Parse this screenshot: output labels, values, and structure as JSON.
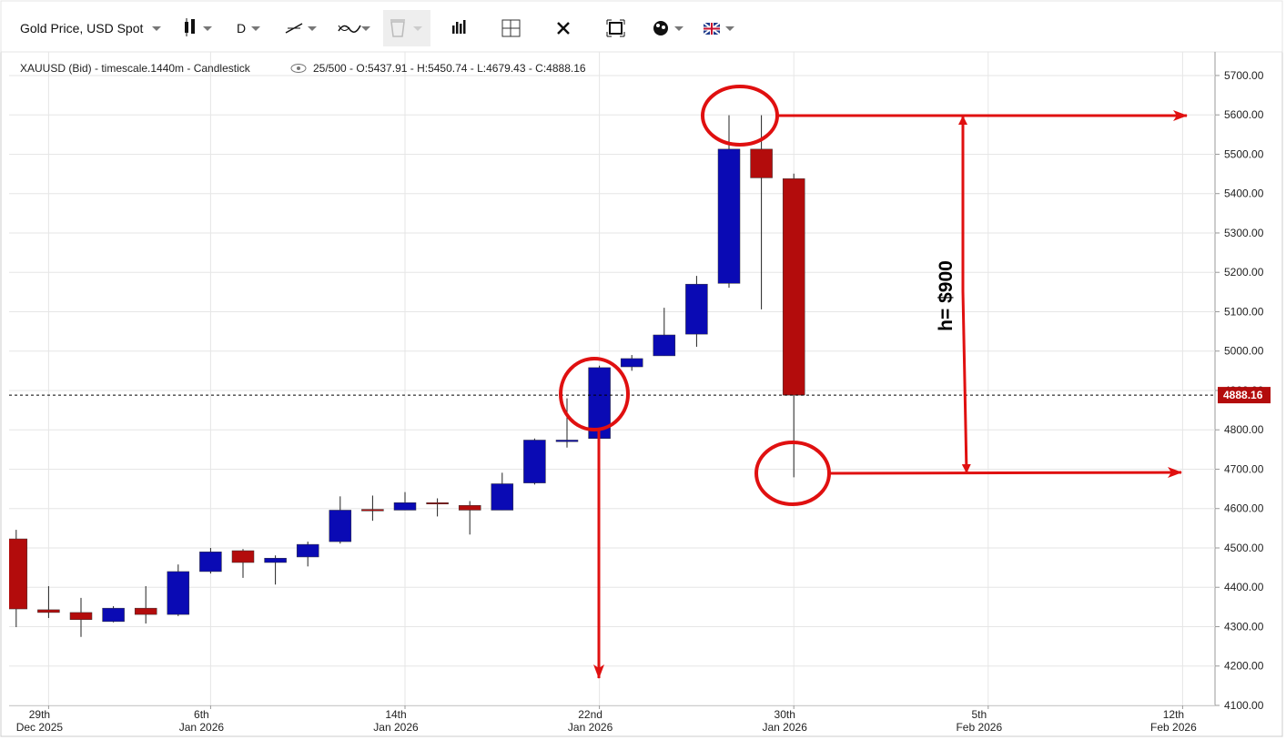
{
  "toolbar": {
    "symbol": "Gold Price, USD Spot",
    "interval": "D"
  },
  "chart_data": {
    "type": "candlestick",
    "header": "XAUUSD (Bid) - timescale.1440m - Candlestick",
    "header_stats": "25/500 - O:5437.91 - H:5450.74 - L:4679.43 - C:4888.16",
    "categories": [
      null,
      "29th Dec 2025",
      null,
      null,
      null,
      null,
      "6th Jan 2026",
      null,
      null,
      null,
      null,
      null,
      "14th Jan 2026",
      null,
      null,
      null,
      null,
      null,
      "22nd Jan 2026",
      null,
      null,
      null,
      null,
      null,
      "30th Jan 2026",
      null,
      null,
      null,
      null,
      null,
      "5th Feb 2026",
      null,
      null,
      null,
      null,
      null,
      "12th Feb 2026"
    ],
    "open": [
      4523,
      4343,
      4336,
      4313,
      4347,
      4331,
      4440,
      4493,
      4463,
      4477,
      4516,
      4598,
      4596,
      4615,
      4608,
      4596,
      4665,
      4770,
      4778,
      4960,
      4988,
      5043,
      5172,
      5513,
      5437.91,
      null,
      null,
      null,
      null,
      null,
      null,
      null,
      null,
      null,
      null,
      null,
      null
    ],
    "high": [
      4546,
      4403,
      4373,
      4352,
      4403,
      4458,
      4500,
      4497,
      4481,
      4516,
      4631,
      4633,
      4642,
      4626,
      4619,
      4691,
      4778,
      4880,
      4963,
      4990,
      5110,
      5191,
      5599,
      5599,
      5450.74,
      null,
      null,
      null,
      null,
      null,
      null,
      null,
      null,
      null,
      null,
      null,
      null
    ],
    "low": [
      4299,
      4322,
      4274,
      4311,
      4308,
      4327,
      4435,
      4424,
      4407,
      4453,
      4511,
      4569,
      4596,
      4580,
      4534,
      4596,
      4661,
      4755,
      4774,
      4950,
      4988,
      5011,
      5161,
      5106,
      4679.43,
      null,
      null,
      null,
      null,
      null,
      null,
      null,
      null,
      null,
      null,
      null,
      null
    ],
    "close": [
      4345,
      4336,
      4318,
      4347,
      4331,
      4440,
      4490,
      4463,
      4474,
      4509,
      4596,
      4594,
      4615,
      4614,
      4596,
      4663,
      4774,
      4774,
      4958,
      4981,
      5041,
      5170,
      5513,
      5440,
      4888.16,
      null,
      null,
      null,
      null,
      null,
      null,
      null,
      null,
      null,
      null,
      null,
      null
    ],
    "up_color": "#0a0ab4",
    "down_color": "#b30c0c",
    "ylim": [
      4100,
      5760
    ],
    "yticks": [
      {
        "value": 4100,
        "label": "4100.00"
      },
      {
        "value": 4200,
        "label": "4200.00"
      },
      {
        "value": 4300,
        "label": "4300.00"
      },
      {
        "value": 4400,
        "label": "4400.00"
      },
      {
        "value": 4500,
        "label": "4500.00"
      },
      {
        "value": 4600,
        "label": "4600.00"
      },
      {
        "value": 4700,
        "label": "4700.00"
      },
      {
        "value": 4800,
        "label": "4800.00"
      },
      {
        "value": 4900,
        "label": "4900.00"
      },
      {
        "value": 5000,
        "label": "5000.00"
      },
      {
        "value": 5100,
        "label": "5100.00"
      },
      {
        "value": 5200,
        "label": "5200.00"
      },
      {
        "value": 5300,
        "label": "5300.00"
      },
      {
        "value": 5400,
        "label": "5400.00"
      },
      {
        "value": 5500,
        "label": "5500.00"
      },
      {
        "value": 5600,
        "label": "5600.00"
      },
      {
        "value": 5700,
        "label": "5700.00"
      }
    ],
    "last_price": 4888.16,
    "grid": true,
    "annotation": "h= $900"
  }
}
